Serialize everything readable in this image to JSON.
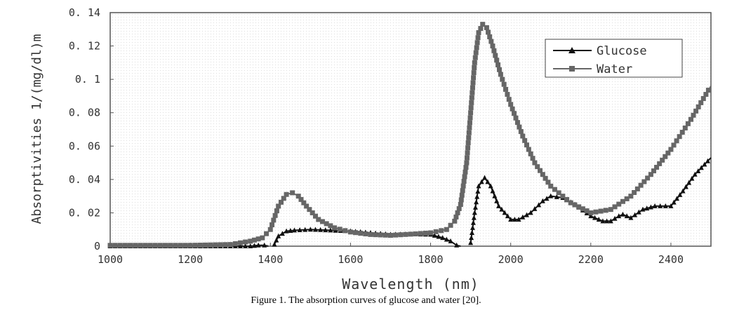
{
  "chart_data": {
    "type": "line",
    "title": "",
    "xlabel": "Wavelength (nm)",
    "ylabel": "Absorptivities 1/(mg/dl)m",
    "xlim": [
      1000,
      2500
    ],
    "ylim": [
      0,
      0.14
    ],
    "xticks": [
      1000,
      1200,
      1400,
      1600,
      1800,
      2000,
      2200,
      2400
    ],
    "yticks": [
      0,
      0.02,
      0.04,
      0.06,
      0.08,
      0.1,
      0.12,
      0.14
    ],
    "ytick_labels": [
      "0",
      "0.02",
      "0.04",
      "0.06",
      "0.08",
      "0.1",
      "0.12",
      "0.14"
    ],
    "legend_position": "top-right",
    "series": [
      {
        "name": "Glucose",
        "color": "#111111",
        "marker": "triangle",
        "x": [
          1000,
          1100,
          1200,
          1300,
          1350,
          1370,
          1385,
          1395,
          1400,
          1410,
          1420,
          1440,
          1460,
          1500,
          1550,
          1600,
          1650,
          1700,
          1750,
          1800,
          1830,
          1850,
          1865,
          1875,
          1895,
          1900,
          1910,
          1920,
          1935,
          1950,
          1970,
          2000,
          2020,
          2050,
          2080,
          2100,
          2130,
          2160,
          2200,
          2230,
          2250,
          2270,
          2280,
          2300,
          2330,
          2360,
          2400,
          2430,
          2460,
          2500
        ],
        "y": [
          0,
          0,
          0,
          0,
          0,
          0.0005,
          0.0005,
          0,
          null,
          0.001,
          0.006,
          0.009,
          0.0095,
          0.01,
          0.0095,
          0.009,
          0.008,
          0.007,
          0.0072,
          0.007,
          0.005,
          0.003,
          0.0005,
          0,
          null,
          0.002,
          0.02,
          0.036,
          0.041,
          0.036,
          0.024,
          0.016,
          0.016,
          0.02,
          0.027,
          0.03,
          0.029,
          0.025,
          0.018,
          0.015,
          0.015,
          0.018,
          0.019,
          0.017,
          0.022,
          0.024,
          0.024,
          0.033,
          0.043,
          0.053
        ]
      },
      {
        "name": "Water",
        "color": "#666666",
        "marker": "square",
        "x": [
          1000,
          1100,
          1200,
          1300,
          1350,
          1380,
          1400,
          1420,
          1440,
          1455,
          1470,
          1490,
          1520,
          1560,
          1600,
          1650,
          1700,
          1750,
          1800,
          1840,
          1860,
          1875,
          1890,
          1900,
          1910,
          1920,
          1930,
          1940,
          1955,
          1975,
          2000,
          2030,
          2060,
          2100,
          2150,
          2200,
          2250,
          2300,
          2350,
          2400,
          2450,
          2500
        ],
        "y": [
          0.0005,
          0.0005,
          0.0005,
          0.001,
          0.003,
          0.005,
          0.01,
          0.024,
          0.031,
          0.032,
          0.03,
          0.024,
          0.016,
          0.011,
          0.0085,
          0.007,
          0.0065,
          0.0072,
          0.008,
          0.01,
          0.015,
          0.025,
          0.05,
          0.08,
          0.11,
          0.128,
          0.133,
          0.131,
          0.12,
          0.103,
          0.085,
          0.066,
          0.05,
          0.036,
          0.026,
          0.02,
          0.022,
          0.03,
          0.043,
          0.058,
          0.076,
          0.096
        ]
      }
    ]
  },
  "caption": "Figure 1. The absorption curves of glucose and water [20]."
}
